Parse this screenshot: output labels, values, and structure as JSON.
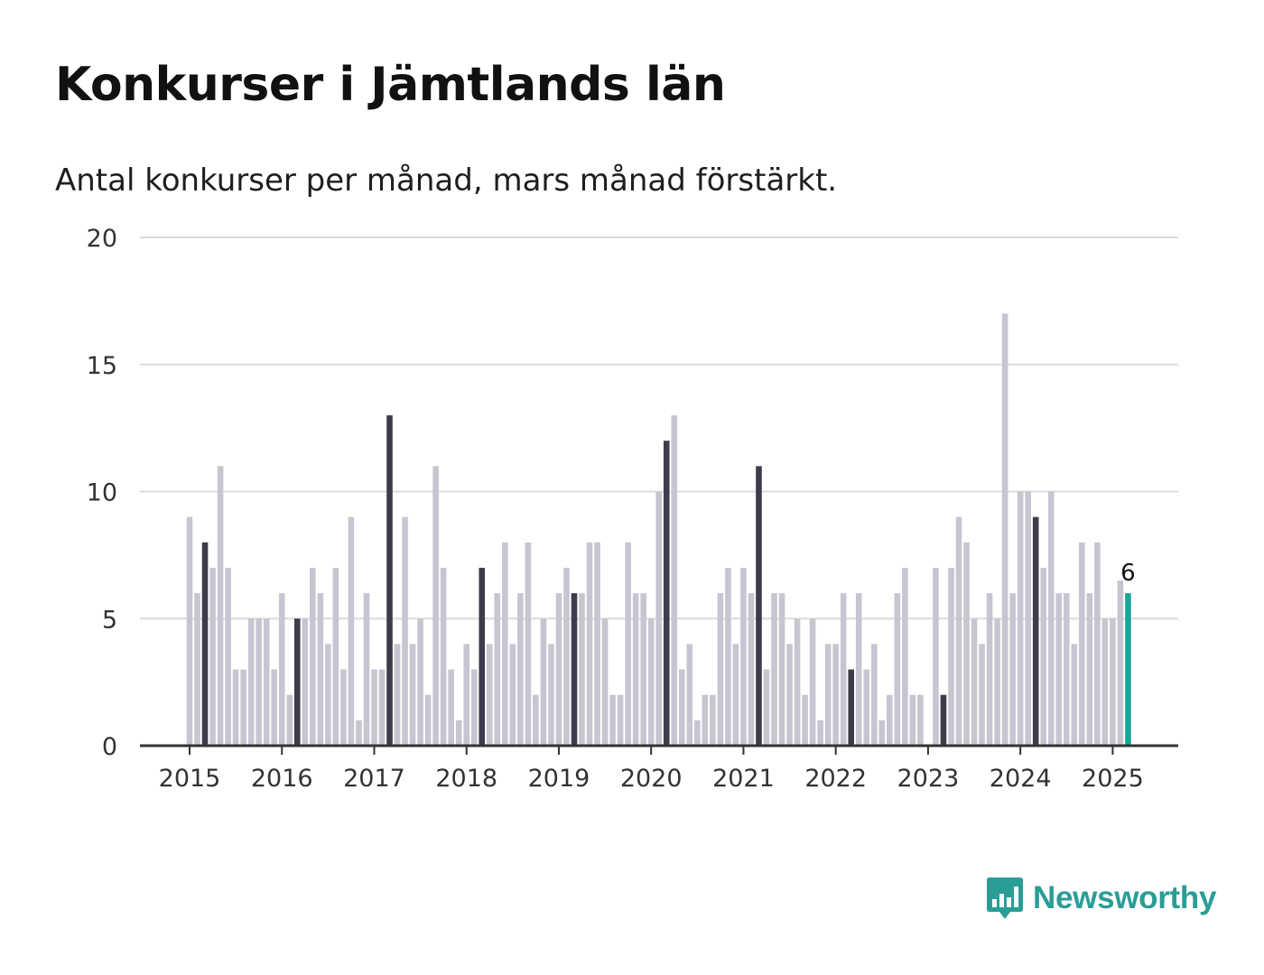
{
  "header": {
    "title": "Konkurser i Jämtlands län",
    "subtitle": "Antal konkurser per månad, mars månad förstärkt."
  },
  "brand": {
    "name": "Newsworthy",
    "icon": "bar-chart-speech-bubble-icon"
  },
  "colors": {
    "bar_default": "#c6c6d2",
    "bar_march": "#3d3c4b",
    "bar_latest": "#1aa49b",
    "gridline": "#dcdcdc",
    "axis": "#333333",
    "brand": "#2a9d96"
  },
  "chart_data": {
    "type": "bar",
    "title": "Konkurser i Jämtlands län",
    "subtitle": "Antal konkurser per månad, mars månad förstärkt.",
    "xlabel": "",
    "ylabel": "",
    "ylim": [
      0,
      20
    ],
    "yticks": [
      0,
      5,
      10,
      15,
      20
    ],
    "xtick_labels": [
      "2015",
      "2016",
      "2017",
      "2018",
      "2019",
      "2020",
      "2021",
      "2022",
      "2023",
      "2024",
      "2025"
    ],
    "grid": true,
    "highlight": "March of each year; latest month (March 2025) in teal",
    "start_month": "2015-01",
    "end_month": "2025-03",
    "values": [
      9,
      6,
      8,
      7,
      11,
      7,
      3,
      3,
      5,
      5,
      5,
      3,
      6,
      2,
      5,
      5,
      7,
      6,
      4,
      7,
      3,
      9,
      1,
      6,
      3,
      3,
      13,
      4,
      9,
      4,
      5,
      2,
      11,
      7,
      3,
      1,
      4,
      3,
      7,
      4,
      6,
      8,
      4,
      6,
      8,
      2,
      5,
      4,
      6,
      7,
      6,
      6,
      8,
      8,
      5,
      2,
      2,
      8,
      6,
      6,
      5,
      10,
      12,
      13,
      3,
      4,
      1,
      2,
      2,
      6,
      7,
      4,
      7,
      6,
      11,
      3,
      6,
      6,
      4,
      5,
      2,
      5,
      1,
      4,
      4,
      6,
      3,
      6,
      3,
      4,
      1,
      2,
      6,
      7,
      2,
      2,
      0,
      7,
      2,
      7,
      9,
      8,
      5,
      4,
      6,
      5,
      17,
      6,
      10,
      10,
      9,
      7,
      10,
      6,
      6,
      4,
      8,
      6,
      8,
      5,
      5,
      6.5,
      6
    ],
    "data_labels": [
      {
        "month": "2025-03",
        "value": 6,
        "text": "6"
      }
    ]
  }
}
